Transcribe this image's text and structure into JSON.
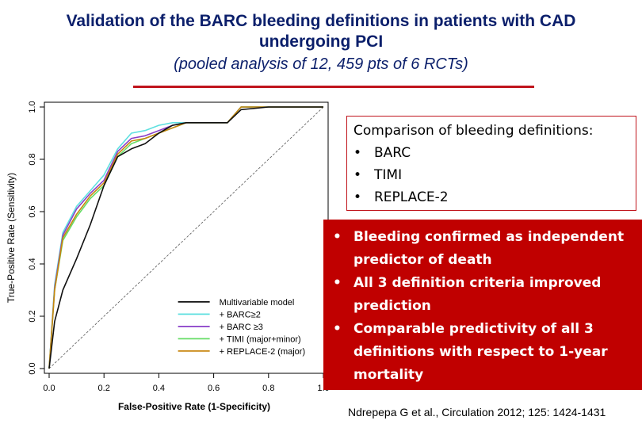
{
  "title_line1": "Validation of the BARC bleeding definitions in patients with CAD",
  "title_line2": "undergoing PCI",
  "subtitle": "(pooled analysis of 12, 459 pts of 6 RCTs)",
  "info_box": {
    "heading": "Comparison of bleeding definitions:",
    "items": [
      "BARC",
      "TIMI",
      "REPLACE-2"
    ]
  },
  "findings": [
    "Bleeding confirmed as independent predictor of death",
    "All 3 definition criteria improved prediction",
    "Comparable predictivity of all 3 definitions with respect to 1-year mortality"
  ],
  "citation": "Ndrepepa G et al., Circulation 2012; 125: 1424-1431",
  "chart_data": {
    "type": "line",
    "title": "",
    "xlabel": "False-Positive Rate (1-Specificity)",
    "ylabel": "True-Positive Rate (Sensitivity)",
    "xlim": [
      0,
      1
    ],
    "ylim": [
      0,
      1
    ],
    "x_ticks": [
      "0.0",
      "0.2",
      "0.4",
      "0.6",
      "0.8",
      "1.0"
    ],
    "y_ticks": [
      "0.0",
      "0.2",
      "0.4",
      "0.6",
      "0.8",
      "1.0"
    ],
    "legend_position": "bottom-right",
    "reference_line": true,
    "series": [
      {
        "name": "Multivariable model",
        "color": "#111111",
        "x": [
          0,
          0.02,
          0.05,
          0.1,
          0.15,
          0.2,
          0.25,
          0.3,
          0.35,
          0.4,
          0.45,
          0.5,
          0.6,
          0.65,
          0.7,
          0.8,
          1.0
        ],
        "y": [
          0,
          0.18,
          0.3,
          0.42,
          0.55,
          0.7,
          0.81,
          0.84,
          0.86,
          0.9,
          0.93,
          0.94,
          0.94,
          0.94,
          0.99,
          1.0,
          1.0
        ]
      },
      {
        "name": "+ BARC≥2",
        "color": "#5fe0e0",
        "x": [
          0,
          0.02,
          0.05,
          0.1,
          0.15,
          0.2,
          0.25,
          0.3,
          0.35,
          0.4,
          0.45,
          0.5,
          0.6,
          0.65,
          0.7,
          0.8,
          1.0
        ],
        "y": [
          0,
          0.32,
          0.52,
          0.62,
          0.68,
          0.74,
          0.84,
          0.9,
          0.91,
          0.93,
          0.94,
          0.94,
          0.94,
          0.94,
          1.0,
          1.0,
          1.0
        ]
      },
      {
        "name": "+ BARC ≥3",
        "color": "#8a3fc8",
        "x": [
          0,
          0.02,
          0.05,
          0.1,
          0.15,
          0.2,
          0.25,
          0.3,
          0.35,
          0.4,
          0.45,
          0.5,
          0.6,
          0.65,
          0.7,
          0.8,
          1.0
        ],
        "y": [
          0,
          0.31,
          0.51,
          0.61,
          0.67,
          0.72,
          0.83,
          0.88,
          0.89,
          0.91,
          0.93,
          0.94,
          0.94,
          0.94,
          1.0,
          1.0,
          1.0
        ]
      },
      {
        "name": "+ TIMI (major+minor)",
        "color": "#66dd66",
        "x": [
          0,
          0.02,
          0.05,
          0.1,
          0.15,
          0.2,
          0.25,
          0.3,
          0.35,
          0.4,
          0.45,
          0.5,
          0.6,
          0.65,
          0.7,
          0.8,
          1.0
        ],
        "y": [
          0,
          0.3,
          0.49,
          0.58,
          0.65,
          0.7,
          0.81,
          0.86,
          0.88,
          0.9,
          0.92,
          0.94,
          0.94,
          0.94,
          1.0,
          1.0,
          1.0
        ]
      },
      {
        "name": "+ REPLACE-2 (major)",
        "color": "#c8860f",
        "x": [
          0,
          0.02,
          0.05,
          0.1,
          0.15,
          0.2,
          0.25,
          0.3,
          0.35,
          0.4,
          0.45,
          0.5,
          0.6,
          0.65,
          0.7,
          0.8,
          1.0
        ],
        "y": [
          0,
          0.3,
          0.5,
          0.59,
          0.66,
          0.71,
          0.82,
          0.87,
          0.88,
          0.9,
          0.92,
          0.94,
          0.94,
          0.94,
          1.0,
          1.0,
          1.0
        ]
      }
    ]
  }
}
